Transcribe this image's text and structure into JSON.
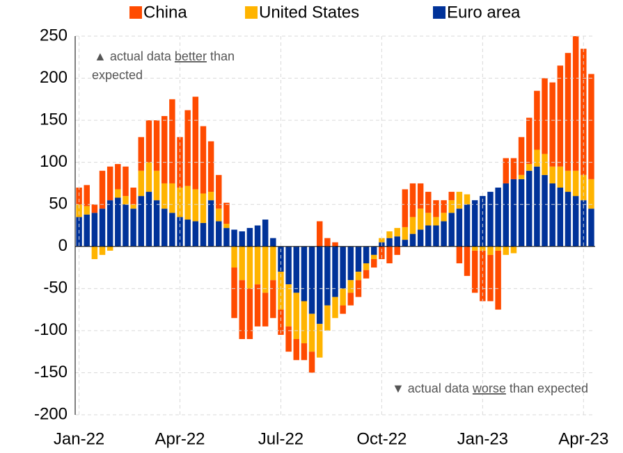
{
  "chart_data": {
    "type": "stacked-bar",
    "categories": [
      "Jan-22",
      null,
      null,
      null,
      null,
      null,
      null,
      null,
      null,
      null,
      null,
      null,
      null,
      "Apr-22",
      null,
      null,
      null,
      null,
      null,
      null,
      null,
      null,
      null,
      null,
      null,
      null,
      "Jul-22",
      null,
      null,
      null,
      null,
      null,
      null,
      null,
      null,
      null,
      null,
      null,
      null,
      "Oct-22",
      null,
      null,
      null,
      null,
      null,
      null,
      null,
      null,
      null,
      null,
      null,
      null,
      "Jan-23",
      null,
      null,
      null,
      null,
      null,
      null,
      null,
      null,
      null,
      null,
      null,
      null,
      "Apr-23",
      null
    ],
    "series": [
      {
        "name": "China",
        "color": "#ff4b00",
        "values": [
          20,
          25,
          10,
          45,
          40,
          30,
          35,
          20,
          40,
          50,
          60,
          80,
          100,
          60,
          90,
          110,
          80,
          60,
          40,
          25,
          -60,
          -70,
          -60,
          -50,
          -40,
          -45,
          -30,
          -30,
          -25,
          -20,
          -25,
          30,
          10,
          5,
          -10,
          -15,
          -20,
          -10,
          -10,
          -15,
          -20,
          -10,
          45,
          40,
          30,
          25,
          20,
          15,
          10,
          -20,
          -35,
          -50,
          -60,
          -55,
          -70,
          30,
          25,
          45,
          55,
          70,
          90,
          100,
          120,
          140,
          160,
          150,
          125
        ]
      },
      {
        "name": "United States",
        "color": "#ffb400",
        "values": [
          15,
          10,
          -15,
          -10,
          -5,
          10,
          10,
          5,
          30,
          35,
          35,
          30,
          35,
          35,
          40,
          38,
          35,
          10,
          15,
          5,
          -25,
          -40,
          -50,
          -45,
          -55,
          -40,
          -45,
          -50,
          -55,
          -50,
          -45,
          -40,
          -30,
          -25,
          -20,
          -15,
          -10,
          -8,
          -5,
          5,
          8,
          10,
          15,
          20,
          25,
          15,
          10,
          10,
          15,
          20,
          12,
          -5,
          -5,
          -10,
          -5,
          -10,
          -8,
          5,
          8,
          20,
          25,
          20,
          25,
          25,
          30,
          30,
          35
        ]
      },
      {
        "name": "Euro area",
        "color": "#003299",
        "values": [
          35,
          38,
          40,
          45,
          55,
          58,
          50,
          45,
          60,
          65,
          55,
          45,
          40,
          35,
          32,
          30,
          28,
          55,
          30,
          22,
          20,
          18,
          22,
          25,
          32,
          10,
          -30,
          -45,
          -55,
          -65,
          -80,
          -92,
          -70,
          -60,
          -50,
          -40,
          -30,
          -20,
          -10,
          5,
          10,
          12,
          8,
          15,
          20,
          25,
          25,
          30,
          40,
          45,
          50,
          55,
          60,
          65,
          70,
          75,
          80,
          80,
          90,
          95,
          85,
          75,
          70,
          65,
          60,
          55,
          45
        ]
      }
    ],
    "annotation_top": [
      "▲ actual data",
      "better",
      "than",
      "expected"
    ],
    "annotation_bottom": [
      "▼ actual data",
      "worse",
      "than expected"
    ],
    "ylim": [
      -200,
      250
    ],
    "yticks": [
      -200,
      -150,
      -100,
      -50,
      0,
      50,
      100,
      150,
      200,
      250
    ],
    "grid": true,
    "legend": "top"
  }
}
